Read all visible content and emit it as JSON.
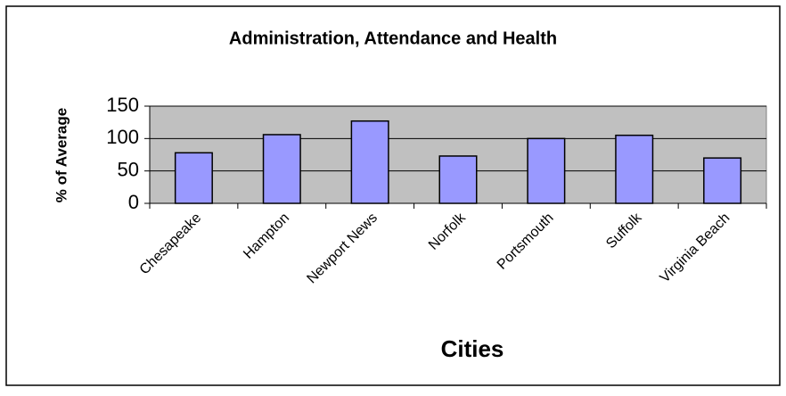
{
  "chart_data": {
    "type": "bar",
    "title": "Administration, Attendance and Health",
    "x_label": "Cities",
    "y_label": "% of Average",
    "categories": [
      "Chesapeake",
      "Hampton",
      "Newport News",
      "Norfolk",
      "Portsmouth",
      "Suffolk",
      "Virginia Beach"
    ],
    "values": [
      78,
      106,
      127,
      73,
      100,
      105,
      70
    ],
    "color": "#9999ff",
    "plot_background": "#c0c0c0",
    "ylim": [
      0,
      150
    ],
    "yticks": [
      0,
      50,
      100,
      150
    ],
    "grid": true
  }
}
